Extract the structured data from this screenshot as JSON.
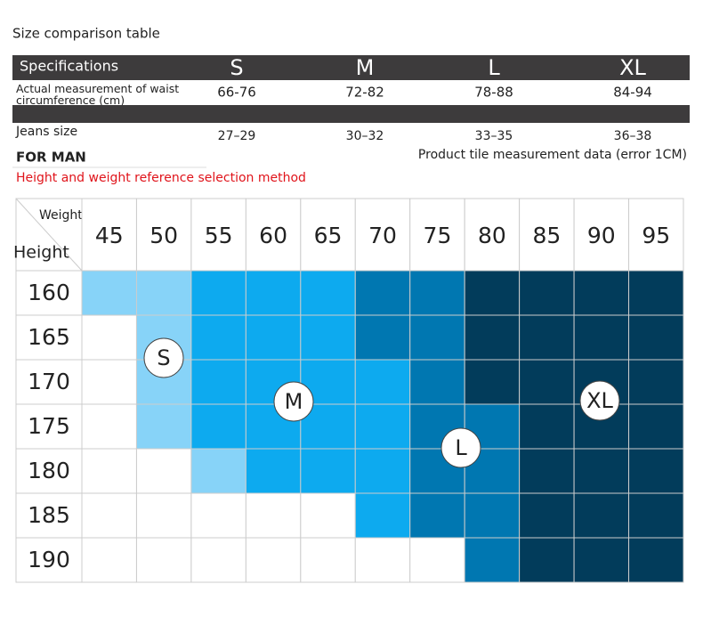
{
  "title": "Size comparison table",
  "spec_table": {
    "header": [
      "Specifications",
      "S",
      "M",
      "L",
      "XL"
    ],
    "rows": [
      [
        "Actual measurement of waist circumference (cm)",
        "66-76",
        "72-82",
        "78-88",
        "84-94"
      ],
      [
        "Jeans size",
        "27–29",
        "30–32",
        "33–35",
        "36–38"
      ]
    ]
  },
  "for_man": "FOR MAN",
  "note": "Product tile measurement data (error 1CM)",
  "section_title": "Height and weight reference selection method",
  "grid": {
    "corner_weight": "Weight",
    "corner_height": "Height",
    "weights": [
      "45",
      "50",
      "55",
      "60",
      "65",
      "70",
      "75",
      "80",
      "85",
      "90",
      "95"
    ],
    "heights": [
      "160",
      "165",
      "170",
      "175",
      "180",
      "185",
      "190"
    ],
    "cell_colors": [
      [
        "#87d3f8",
        "#87d3f8",
        "#0daaef",
        "#0daaef",
        "#0daaef",
        "#0077b1",
        "#0077b1",
        "#023c5b",
        "#023c5b",
        "#023c5b",
        "#023c5b"
      ],
      [
        "#ffffff",
        "#87d3f8",
        "#0daaef",
        "#0daaef",
        "#0daaef",
        "#0077b1",
        "#0077b1",
        "#023c5b",
        "#023c5b",
        "#023c5b",
        "#023c5b"
      ],
      [
        "#ffffff",
        "#87d3f8",
        "#0daaef",
        "#0daaef",
        "#0daaef",
        "#0daaef",
        "#0077b1",
        "#023c5b",
        "#023c5b",
        "#023c5b",
        "#023c5b"
      ],
      [
        "#ffffff",
        "#87d3f8",
        "#0daaef",
        "#0daaef",
        "#0daaef",
        "#0daaef",
        "#0077b1",
        "#0077b1",
        "#023c5b",
        "#023c5b",
        "#023c5b"
      ],
      [
        "#ffffff",
        "#ffffff",
        "#87d3f8",
        "#0daaef",
        "#0daaef",
        "#0daaef",
        "#0077b1",
        "#0077b1",
        "#023c5b",
        "#023c5b",
        "#023c5b"
      ],
      [
        "#ffffff",
        "#ffffff",
        "#ffffff",
        "#ffffff",
        "#ffffff",
        "#0daaef",
        "#0077b1",
        "#0077b1",
        "#023c5b",
        "#023c5b",
        "#023c5b"
      ],
      [
        "#ffffff",
        "#ffffff",
        "#ffffff",
        "#ffffff",
        "#ffffff",
        "#ffffff",
        "#ffffff",
        "#0077b1",
        "#023c5b",
        "#023c5b",
        "#023c5b"
      ]
    ],
    "zones": [
      "S",
      "M",
      "L",
      "XL"
    ]
  }
}
